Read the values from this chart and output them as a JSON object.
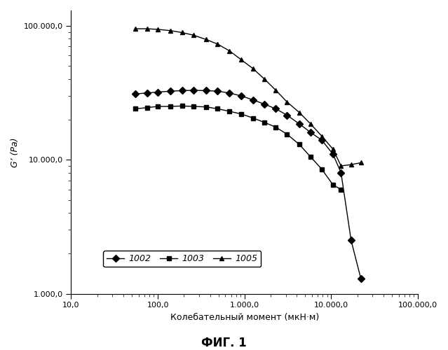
{
  "series": {
    "1002": {
      "x": [
        55,
        75,
        100,
        140,
        190,
        260,
        360,
        490,
        670,
        910,
        1250,
        1700,
        2300,
        3100,
        4300,
        5800,
        7800,
        10500,
        13000,
        17000,
        22000
      ],
      "y": [
        31000,
        31500,
        32000,
        32500,
        32800,
        33000,
        32800,
        32500,
        31500,
        30000,
        28000,
        26000,
        24000,
        21500,
        18500,
        16000,
        14000,
        11000,
        8000,
        2500,
        1300
      ],
      "marker": "D",
      "color": "#000000"
    },
    "1003": {
      "x": [
        55,
        75,
        100,
        140,
        190,
        260,
        360,
        490,
        670,
        910,
        1250,
        1700,
        2300,
        3100,
        4300,
        5800,
        7800,
        10500,
        13000
      ],
      "y": [
        24000,
        24500,
        25000,
        25000,
        25200,
        25000,
        24800,
        24000,
        23000,
        22000,
        20500,
        19000,
        17500,
        15500,
        13000,
        10500,
        8500,
        6500,
        6000
      ],
      "marker": "s",
      "color": "#000000"
    },
    "1005": {
      "x": [
        55,
        75,
        100,
        140,
        190,
        260,
        360,
        490,
        670,
        910,
        1250,
        1700,
        2300,
        3100,
        4300,
        5800,
        7800,
        10500,
        13000,
        17000,
        22000
      ],
      "y": [
        95000,
        95000,
        94000,
        92000,
        89000,
        85000,
        79000,
        73000,
        65000,
        56000,
        48000,
        40000,
        33000,
        27000,
        22500,
        18500,
        15000,
        12000,
        9000,
        9200,
        9500
      ],
      "marker": "^",
      "color": "#000000"
    }
  },
  "xlim": [
    10,
    100000
  ],
  "ylim": [
    1000,
    130000
  ],
  "xlabel": "Колебательный момент (мкН·м)",
  "ylabel": "G’ (Pa)",
  "title": "ФИГ. 1",
  "legend_labels": [
    "1002",
    "1003",
    "1005"
  ],
  "xtick_labels": [
    "10,0",
    "100,0",
    "1.000,0",
    "10.000,0",
    "100.000,0"
  ],
  "ytick_labels": [
    "1.000,0",
    "10.000,0",
    "100.000,0"
  ],
  "background_color": "#ffffff",
  "grid": false,
  "line_color": "#000000",
  "markersize": 5
}
